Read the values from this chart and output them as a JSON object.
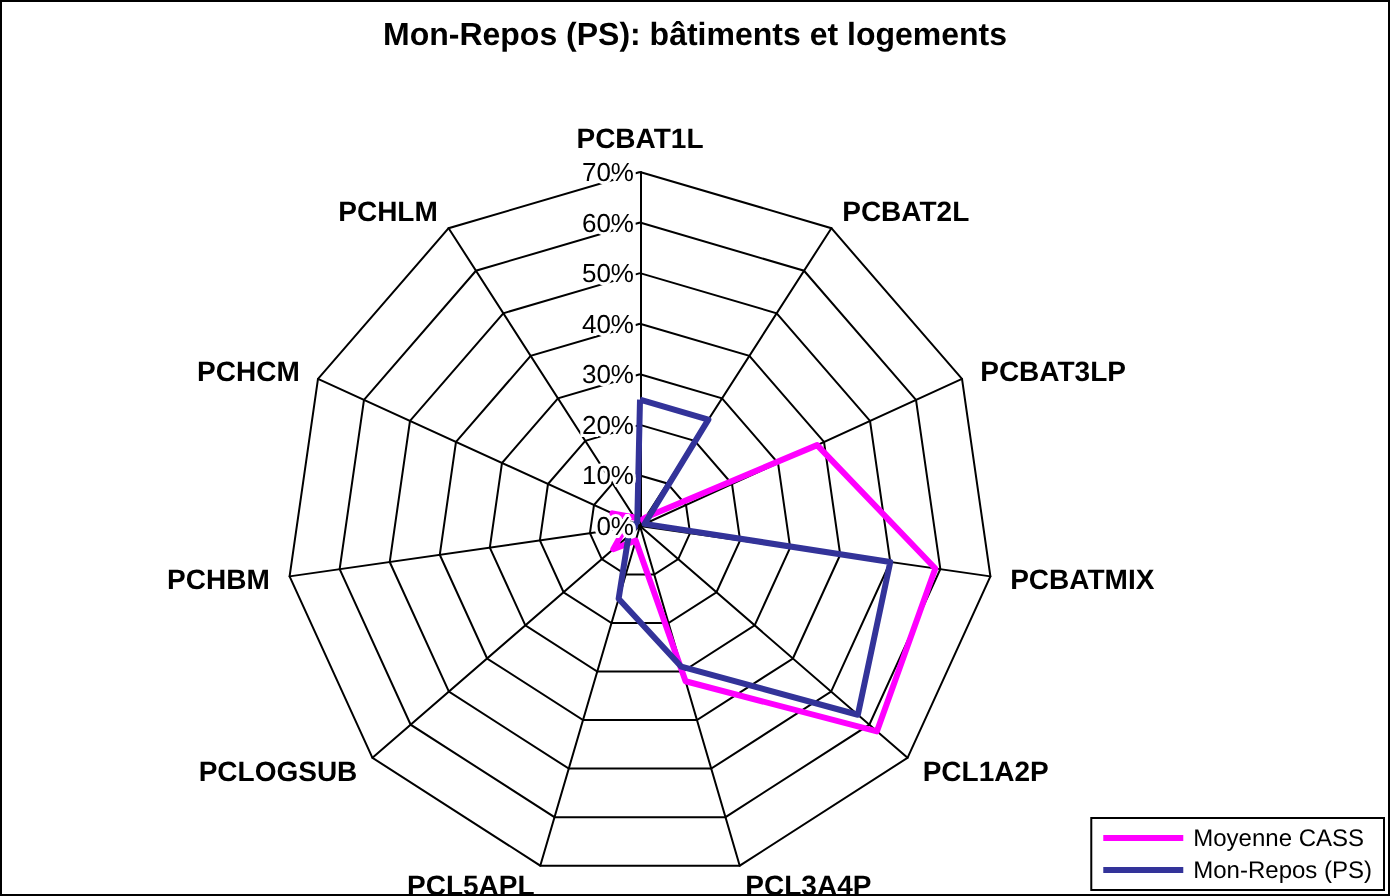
{
  "chart_data": {
    "type": "radar",
    "title": "Mon-Repos (PS): bâtiments et logements",
    "categories": [
      "PCBAT1L",
      "PCBAT2L",
      "PCBAT3LP",
      "PCBATMIX",
      "PCL1A2P",
      "PCL3A4P",
      "PCL5APL",
      "PCLOGSUB",
      "PCHBM",
      "PCHCM",
      "PCHLM"
    ],
    "series": [
      {
        "name": "Moyenne CASS",
        "color": "#ff00ff",
        "values": [
          1,
          2,
          38.5,
          59,
          62,
          32,
          3,
          7,
          3,
          6,
          2
        ]
      },
      {
        "name": "Mon-Repos (PS)",
        "color": "#333399",
        "values": [
          25,
          25,
          1,
          50,
          57,
          29,
          15,
          3,
          1,
          1,
          1
        ]
      }
    ],
    "ylim": [
      0,
      70
    ],
    "yticks": [
      {
        "value": 0,
        "label": "0%"
      },
      {
        "value": 10,
        "label": "10%"
      },
      {
        "value": 20,
        "label": "20%"
      },
      {
        "value": 30,
        "label": "30%"
      },
      {
        "value": 40,
        "label": "40%"
      },
      {
        "value": 50,
        "label": "50%"
      },
      {
        "value": 60,
        "label": "60%"
      },
      {
        "value": 70,
        "label": "70%"
      }
    ],
    "legend": "bottom right",
    "marker": "none"
  }
}
